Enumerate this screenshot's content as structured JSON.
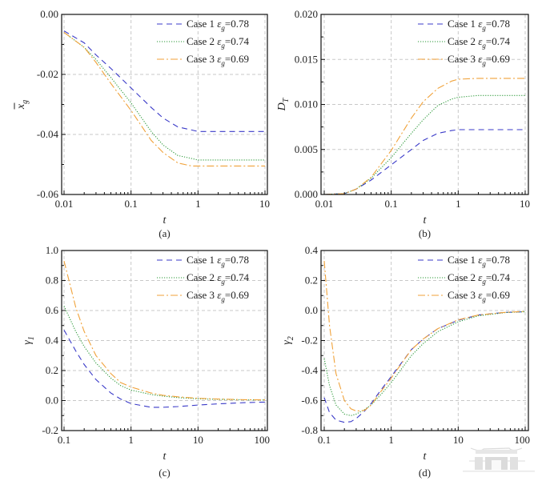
{
  "chart_data": [
    {
      "type": "line",
      "panel": "(a)",
      "xlabel": "t",
      "ylabel": "x̄_g",
      "xscale": "log",
      "xlim": [
        0.01,
        10
      ],
      "ylim": [
        -0.06,
        0.0
      ],
      "xticks": [
        0.01,
        0.1,
        1,
        10
      ],
      "xtick_labels": [
        "0.01",
        "0.1",
        "1",
        "10"
      ],
      "yticks": [
        -0.06,
        -0.04,
        -0.02,
        0.0
      ],
      "ytick_labels": [
        "-0.06",
        "-0.04",
        "-0.02",
        "0.00"
      ],
      "grid": true,
      "legend_position": "top-right",
      "x": [
        0.01,
        0.02,
        0.03,
        0.05,
        0.1,
        0.2,
        0.3,
        0.5,
        0.8,
        1,
        2,
        5,
        10
      ],
      "series": [
        {
          "name": "Case 1 εg=0.78",
          "case": "Case 1",
          "eps": "=0.78",
          "style": "dash",
          "color": "#3a3ac8",
          "values": [
            -0.0055,
            -0.0095,
            -0.0135,
            -0.018,
            -0.0245,
            -0.031,
            -0.0345,
            -0.0375,
            -0.0385,
            -0.039,
            -0.039,
            -0.039,
            -0.039
          ]
        },
        {
          "name": "Case 2 εg=0.74",
          "case": "Case 2",
          "eps": "=0.74",
          "style": "dot",
          "color": "#2e9a3a",
          "values": [
            -0.006,
            -0.011,
            -0.015,
            -0.021,
            -0.0295,
            -0.039,
            -0.0435,
            -0.047,
            -0.048,
            -0.0485,
            -0.0485,
            -0.0485,
            -0.0485
          ]
        },
        {
          "name": "Case 3 εg=0.69",
          "case": "Case 3",
          "eps": "=0.69",
          "style": "dashdot",
          "color": "#f0a23a",
          "values": [
            -0.006,
            -0.011,
            -0.016,
            -0.023,
            -0.032,
            -0.042,
            -0.046,
            -0.0495,
            -0.0505,
            -0.0505,
            -0.0505,
            -0.0505,
            -0.0505
          ]
        }
      ]
    },
    {
      "type": "line",
      "panel": "(b)",
      "xlabel": "t",
      "ylabel": "D_T",
      "xscale": "log",
      "xlim": [
        0.01,
        10
      ],
      "ylim": [
        0.0,
        0.02
      ],
      "xticks": [
        0.01,
        0.1,
        1,
        10
      ],
      "xtick_labels": [
        "0.01",
        "0.1",
        "1",
        "10"
      ],
      "yticks": [
        0.0,
        0.005,
        0.01,
        0.015,
        0.02
      ],
      "ytick_labels": [
        "0.000",
        "0.005",
        "0.010",
        "0.015",
        "0.020"
      ],
      "grid": true,
      "legend_position": "top-right",
      "x": [
        0.01,
        0.02,
        0.03,
        0.05,
        0.1,
        0.2,
        0.3,
        0.5,
        0.8,
        1,
        2,
        5,
        10
      ],
      "series": [
        {
          "name": "Case 1 εg=0.78",
          "case": "Case 1",
          "eps": "=0.78",
          "style": "dash",
          "color": "#3a3ac8",
          "values": [
            0.0,
            0.0001,
            0.0006,
            0.0016,
            0.0033,
            0.005,
            0.006,
            0.0068,
            0.0071,
            0.0072,
            0.0072,
            0.0072,
            0.0072
          ]
        },
        {
          "name": "Case 2 εg=0.74",
          "case": "Case 2",
          "eps": "=0.74",
          "style": "dot",
          "color": "#2e9a3a",
          "values": [
            0.0,
            0.0001,
            0.0006,
            0.0018,
            0.0041,
            0.0068,
            0.0083,
            0.0099,
            0.0106,
            0.0108,
            0.011,
            0.011,
            0.011
          ]
        },
        {
          "name": "Case 3 εg=0.69",
          "case": "Case 3",
          "eps": "=0.69",
          "style": "dashdot",
          "color": "#f0a23a",
          "values": [
            0.0,
            0.0001,
            0.0006,
            0.0019,
            0.0049,
            0.0085,
            0.0103,
            0.0118,
            0.0126,
            0.0128,
            0.0129,
            0.0129,
            0.0129
          ]
        }
      ]
    },
    {
      "type": "line",
      "panel": "(c)",
      "xlabel": "t",
      "ylabel": "γ1",
      "xscale": "log",
      "xlim": [
        0.1,
        100
      ],
      "ylim": [
        -0.2,
        1.0
      ],
      "xticks": [
        0.1,
        1,
        10,
        100
      ],
      "xtick_labels": [
        "0.1",
        "1",
        "10",
        "100"
      ],
      "yticks": [
        -0.2,
        0.0,
        0.2,
        0.4,
        0.6,
        0.8,
        1.0
      ],
      "ytick_labels": [
        "-0.2",
        "0.0",
        "0.2",
        "0.4",
        "0.6",
        "0.8",
        "1.0"
      ],
      "grid": true,
      "legend_position": "top-right",
      "x": [
        0.1,
        0.15,
        0.2,
        0.3,
        0.5,
        0.7,
        1,
        2,
        3,
        5,
        10,
        20,
        50,
        100
      ],
      "series": [
        {
          "name": "Case 1 εg=0.78",
          "case": "Case 1",
          "eps": "=0.78",
          "style": "dash",
          "color": "#3a3ac8",
          "values": [
            0.47,
            0.33,
            0.24,
            0.14,
            0.05,
            0.01,
            -0.02,
            -0.045,
            -0.045,
            -0.04,
            -0.03,
            -0.022,
            -0.014,
            -0.01
          ]
        },
        {
          "name": "Case 2 εg=0.74",
          "case": "Case 2",
          "eps": "=0.74",
          "style": "dot",
          "color": "#2e9a3a",
          "values": [
            0.63,
            0.46,
            0.36,
            0.25,
            0.15,
            0.1,
            0.07,
            0.04,
            0.03,
            0.02,
            0.012,
            0.008,
            0.005,
            0.004
          ]
        },
        {
          "name": "Case 3 εg=0.69",
          "case": "Case 3",
          "eps": "=0.69",
          "style": "dashdot",
          "color": "#f0a23a",
          "values": [
            0.93,
            0.62,
            0.46,
            0.3,
            0.18,
            0.12,
            0.09,
            0.05,
            0.035,
            0.025,
            0.015,
            0.01,
            0.006,
            0.005
          ]
        }
      ]
    },
    {
      "type": "line",
      "panel": "(d)",
      "xlabel": "t",
      "ylabel": "γ2",
      "xscale": "log",
      "xlim": [
        0.1,
        100
      ],
      "ylim": [
        -0.8,
        0.4
      ],
      "xticks": [
        0.1,
        1,
        10,
        100
      ],
      "xtick_labels": [
        "0.1",
        "1",
        "10",
        "100"
      ],
      "yticks": [
        -0.8,
        -0.6,
        -0.4,
        -0.2,
        0.0,
        0.2,
        0.4
      ],
      "ytick_labels": [
        "-0.8",
        "-0.6",
        "-0.4",
        "-0.2",
        "0.0",
        "0.2",
        "0.4"
      ],
      "grid": true,
      "legend_position": "top-right",
      "x": [
        0.1,
        0.12,
        0.15,
        0.2,
        0.25,
        0.3,
        0.4,
        0.5,
        0.7,
        1,
        2,
        3,
        5,
        10,
        20,
        50,
        100
      ],
      "series": [
        {
          "name": "Case 1 εg=0.78",
          "case": "Case 1",
          "eps": "=0.78",
          "style": "dash",
          "color": "#3a3ac8",
          "values": [
            -0.58,
            -0.68,
            -0.73,
            -0.745,
            -0.74,
            -0.72,
            -0.67,
            -0.62,
            -0.53,
            -0.44,
            -0.26,
            -0.19,
            -0.12,
            -0.065,
            -0.03,
            -0.012,
            -0.008
          ]
        },
        {
          "name": "Case 2 εg=0.74",
          "case": "Case 2",
          "eps": "=0.74",
          "style": "dot",
          "color": "#2e9a3a",
          "values": [
            -0.32,
            -0.5,
            -0.63,
            -0.69,
            -0.7,
            -0.69,
            -0.66,
            -0.63,
            -0.56,
            -0.48,
            -0.3,
            -0.22,
            -0.14,
            -0.075,
            -0.035,
            -0.014,
            -0.008
          ]
        },
        {
          "name": "Case 3 εg=0.69",
          "case": "Case 3",
          "eps": "=0.69",
          "style": "dashdot",
          "color": "#f0a23a",
          "values": [
            0.33,
            -0.1,
            -0.42,
            -0.6,
            -0.655,
            -0.67,
            -0.665,
            -0.63,
            -0.54,
            -0.45,
            -0.26,
            -0.19,
            -0.12,
            -0.062,
            -0.03,
            -0.012,
            -0.006
          ]
        }
      ]
    }
  ]
}
